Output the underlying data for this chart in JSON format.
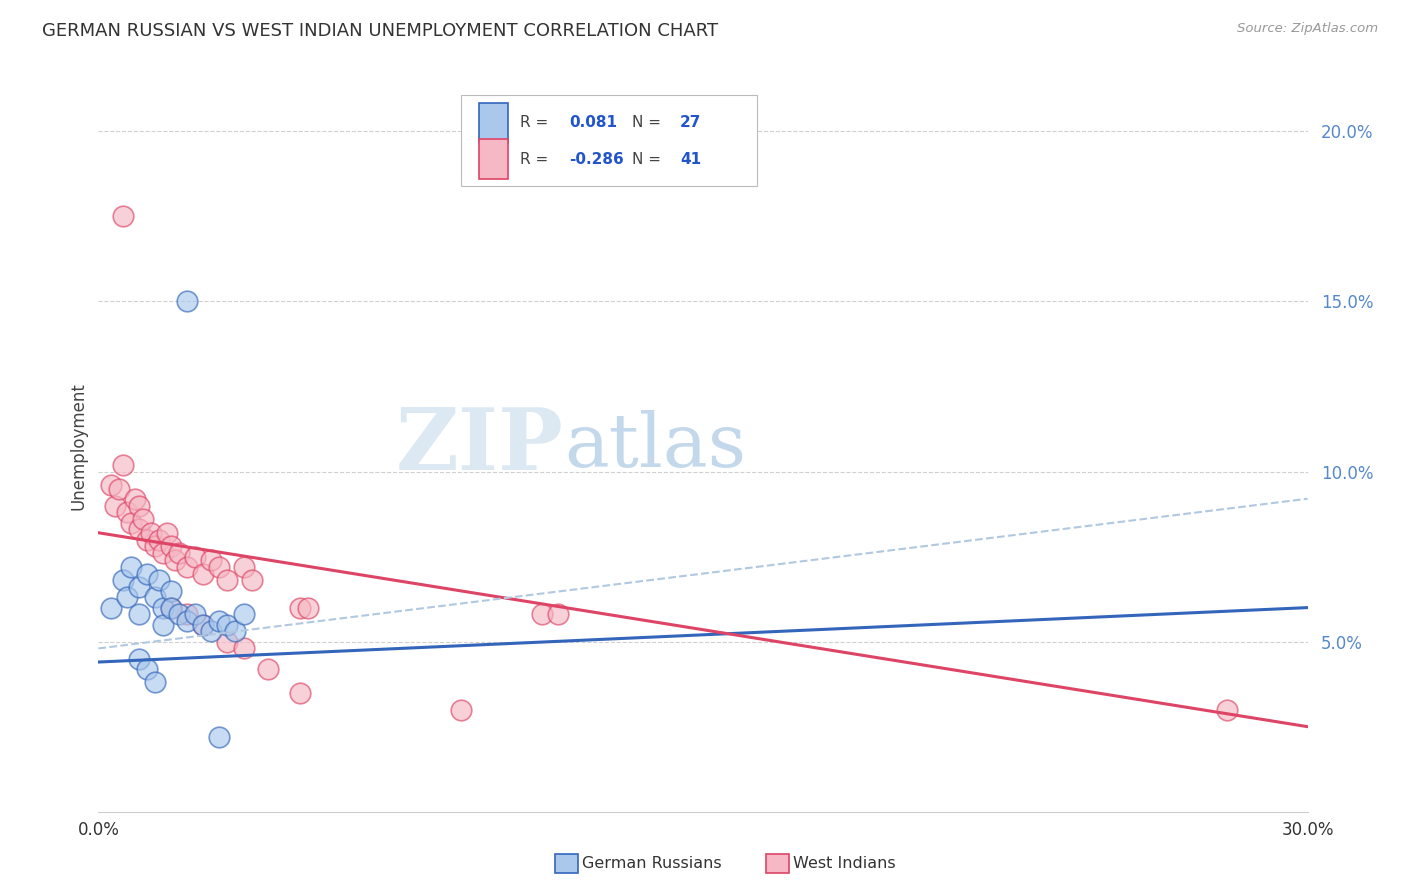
{
  "title": "GERMAN RUSSIAN VS WEST INDIAN UNEMPLOYMENT CORRELATION CHART",
  "source": "Source: ZipAtlas.com",
  "ylabel": "Unemployment",
  "y_ticks": [
    0.05,
    0.1,
    0.15,
    0.2
  ],
  "y_tick_labels": [
    "5.0%",
    "10.0%",
    "15.0%",
    "20.0%"
  ],
  "xmin": 0.0,
  "xmax": 0.3,
  "ymin": 0.0,
  "ymax": 0.215,
  "color_blue": "#aac8ec",
  "color_pink": "#f5b8c4",
  "color_line_blue": "#3366bb",
  "color_line_pink": "#dd4466",
  "color_dashed": "#b0c8e0",
  "watermark_ZIP_color": "#dde8f0",
  "watermark_atlas_color": "#c8dff0",
  "blue_points": [
    [
      0.003,
      0.06
    ],
    [
      0.006,
      0.068
    ],
    [
      0.007,
      0.063
    ],
    [
      0.008,
      0.072
    ],
    [
      0.01,
      0.066
    ],
    [
      0.01,
      0.058
    ],
    [
      0.012,
      0.07
    ],
    [
      0.014,
      0.063
    ],
    [
      0.015,
      0.068
    ],
    [
      0.016,
      0.06
    ],
    [
      0.016,
      0.055
    ],
    [
      0.018,
      0.065
    ],
    [
      0.018,
      0.06
    ],
    [
      0.02,
      0.058
    ],
    [
      0.022,
      0.056
    ],
    [
      0.024,
      0.058
    ],
    [
      0.026,
      0.055
    ],
    [
      0.028,
      0.053
    ],
    [
      0.03,
      0.056
    ],
    [
      0.032,
      0.055
    ],
    [
      0.034,
      0.053
    ],
    [
      0.036,
      0.058
    ],
    [
      0.022,
      0.15
    ],
    [
      0.01,
      0.045
    ],
    [
      0.012,
      0.042
    ],
    [
      0.014,
      0.038
    ],
    [
      0.03,
      0.022
    ]
  ],
  "pink_points": [
    [
      0.003,
      0.096
    ],
    [
      0.004,
      0.09
    ],
    [
      0.005,
      0.095
    ],
    [
      0.006,
      0.102
    ],
    [
      0.007,
      0.088
    ],
    [
      0.008,
      0.085
    ],
    [
      0.009,
      0.092
    ],
    [
      0.01,
      0.09
    ],
    [
      0.01,
      0.083
    ],
    [
      0.011,
      0.086
    ],
    [
      0.012,
      0.08
    ],
    [
      0.013,
      0.082
    ],
    [
      0.014,
      0.078
    ],
    [
      0.015,
      0.08
    ],
    [
      0.016,
      0.076
    ],
    [
      0.017,
      0.082
    ],
    [
      0.018,
      0.078
    ],
    [
      0.019,
      0.074
    ],
    [
      0.02,
      0.076
    ],
    [
      0.022,
      0.072
    ],
    [
      0.024,
      0.075
    ],
    [
      0.026,
      0.07
    ],
    [
      0.028,
      0.074
    ],
    [
      0.03,
      0.072
    ],
    [
      0.032,
      0.068
    ],
    [
      0.036,
      0.072
    ],
    [
      0.038,
      0.068
    ],
    [
      0.006,
      0.175
    ],
    [
      0.018,
      0.06
    ],
    [
      0.022,
      0.058
    ],
    [
      0.026,
      0.055
    ],
    [
      0.032,
      0.05
    ],
    [
      0.036,
      0.048
    ],
    [
      0.042,
      0.042
    ],
    [
      0.05,
      0.06
    ],
    [
      0.052,
      0.06
    ],
    [
      0.05,
      0.035
    ],
    [
      0.09,
      0.03
    ],
    [
      0.11,
      0.058
    ],
    [
      0.114,
      0.058
    ],
    [
      0.28,
      0.03
    ]
  ],
  "blue_line_x": [
    0.0,
    0.3
  ],
  "blue_line_y": [
    0.044,
    0.06
  ],
  "pink_line_x": [
    0.0,
    0.3
  ],
  "pink_line_y": [
    0.082,
    0.025
  ],
  "dashed_line_x": [
    0.0,
    0.3
  ],
  "dashed_line_y": [
    0.048,
    0.092
  ]
}
